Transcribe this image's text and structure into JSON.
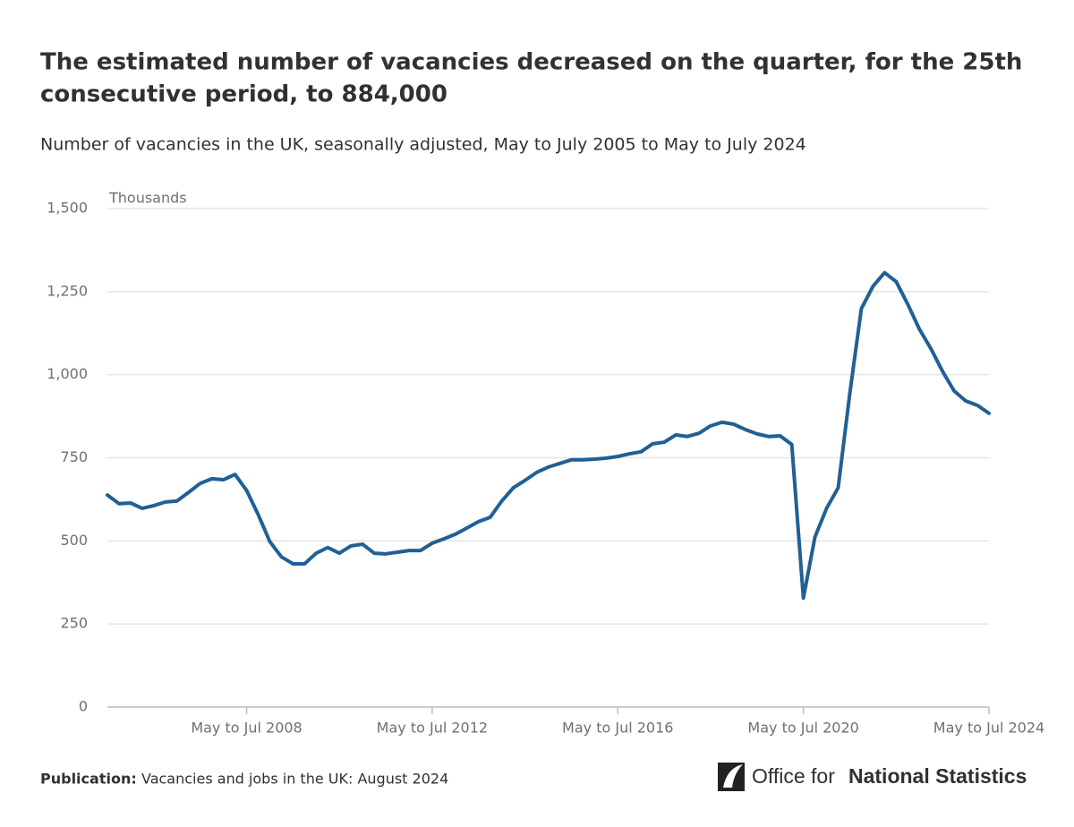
{
  "chart_data": {
    "type": "line",
    "title": "The estimated number of vacancies decreased on the quarter, for the 25th consecutive period, to 884,000",
    "title_lines": [
      "The estimated number of vacancies decreased on the quarter, for the 25th",
      "consecutive period, to 884,000"
    ],
    "subtitle": "Number of vacancies in the UK, seasonally adjusted, May to July 2005 to May to July 2024",
    "y_label": "Thousands",
    "categories": [
      null,
      null,
      null,
      null,
      null,
      null,
      null,
      null,
      null,
      null,
      null,
      null,
      "May to Jul 2008",
      null,
      null,
      null,
      null,
      null,
      null,
      null,
      null,
      null,
      null,
      null,
      null,
      null,
      null,
      null,
      "May to Jul 2012",
      null,
      null,
      null,
      null,
      null,
      null,
      null,
      null,
      null,
      null,
      null,
      null,
      null,
      null,
      null,
      "May to Jul 2016",
      null,
      null,
      null,
      null,
      null,
      null,
      null,
      null,
      null,
      null,
      null,
      null,
      null,
      null,
      null,
      "May to Jul 2020",
      null,
      null,
      null,
      null,
      null,
      null,
      null,
      null,
      null,
      null,
      null,
      null,
      null,
      null,
      null,
      "May to Jul 2024"
    ],
    "series": [
      {
        "name": "Vacancies",
        "color": "#206095",
        "values": [
          638,
          612,
          614,
          598,
          606,
          617,
          620,
          646,
          673,
          687,
          684,
          700,
          652,
          579,
          498,
          452,
          431,
          431,
          463,
          480,
          463,
          485,
          490,
          463,
          461,
          466,
          471,
          471,
          493,
          506,
          520,
          539,
          558,
          571,
          620,
          660,
          682,
          706,
          722,
          733,
          744,
          744,
          746,
          749,
          754,
          762,
          768,
          792,
          797,
          819,
          814,
          824,
          846,
          857,
          851,
          835,
          822,
          814,
          816,
          790,
          328,
          512,
          598,
          660,
          943,
          1199,
          1266,
          1307,
          1280,
          1212,
          1137,
          1078,
          1010,
          951,
          921,
          908,
          884
        ]
      }
    ],
    "ylim": [
      0,
      1500
    ],
    "yticks": [
      0,
      250,
      500,
      750,
      {
        "value": 1000,
        "label": "1,000"
      },
      {
        "value": 1250,
        "label": "1,250"
      },
      {
        "value": 1500,
        "label": "1,500"
      }
    ],
    "grid": true
  },
  "footer": {
    "label": "Publication:",
    "text": "Vacancies and jobs in the UK: August 2024"
  },
  "logo": {
    "light": "Office for",
    "bold": "National Statistics"
  }
}
